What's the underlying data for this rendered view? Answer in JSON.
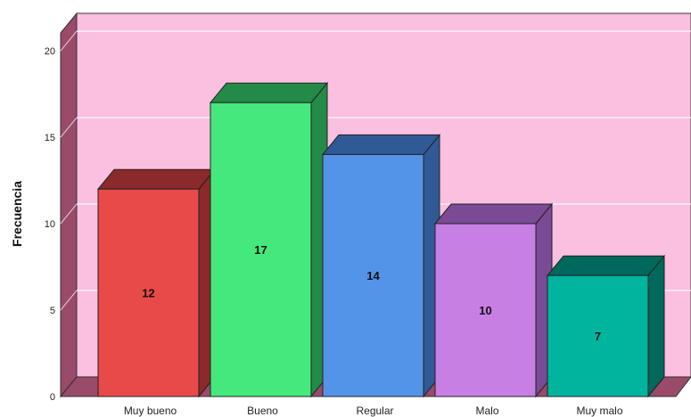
{
  "chart_data": {
    "type": "bar",
    "style": "3d",
    "categories": [
      "Muy bueno",
      "Bueno",
      "Regular",
      "Malo",
      "Muy malo"
    ],
    "values": [
      12,
      17,
      14,
      10,
      7
    ],
    "ylabel": "Frecuencia",
    "xlabel": "",
    "ylim": [
      0,
      20
    ],
    "yticks": [
      0,
      5,
      10,
      15,
      20
    ],
    "data_labels": [
      "12",
      "17",
      "14",
      "10",
      "7"
    ],
    "grid": true,
    "colors": {
      "background_wall": "#fbbfe0",
      "side_wall": "#9a4a6a",
      "floor": "#9a4a6a",
      "gridline": "#ffffff",
      "bars": [
        "#e84a4a",
        "#44e87c",
        "#5494e8",
        "#c87fe4",
        "#00b49e"
      ],
      "bar_sides": [
        "#8a2a2a",
        "#238a47",
        "#2f5a96",
        "#7a4a94",
        "#00685c"
      ]
    }
  }
}
